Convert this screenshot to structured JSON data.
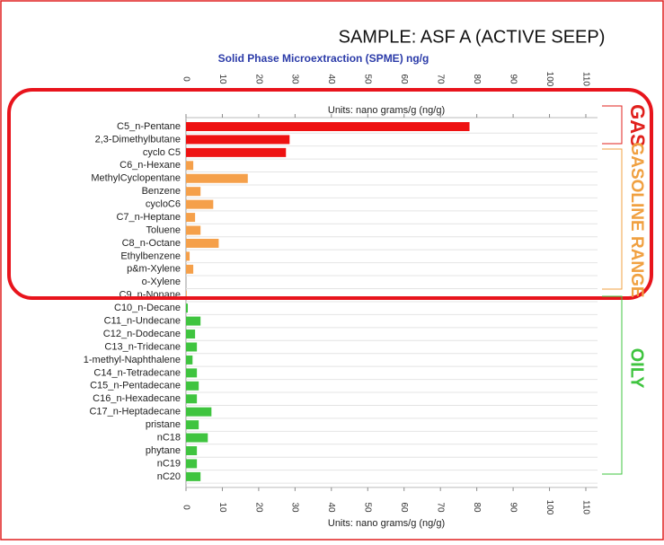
{
  "chart_data": {
    "type": "barh",
    "title": "SAMPLE: ASF A (ACTIVE SEEP)",
    "subtitle": "Solid Phase Microextraction (SPME) ng/g",
    "x_label": "Units: nano grams/g (ng/g)",
    "categories": [
      "C5_n-Pentane",
      "2,3-Dimethylbutane",
      "cyclo C5",
      "C6_n-Hexane",
      "MethylCyclopentane",
      "Benzene",
      "cycloC6",
      "C7_n-Heptane",
      "Toluene",
      "C8_n-Octane",
      "Ethylbenzene",
      "p&m-Xylene",
      "o-Xylene",
      "C9_n-Nonane",
      "C10_n-Decane",
      "C11_n-Undecane",
      "C12_n-Dodecane",
      "C13_n-Tridecane",
      "1-methyl-Naphthalene",
      "C14_n-Tetradecane",
      "C15_n-Pentadecane",
      "C16_n-Hexadecane",
      "C17_n-Heptadecane",
      "pristane",
      "nC18",
      "phytane",
      "nC19",
      "nC20"
    ],
    "values": [
      78,
      28.5,
      27.5,
      2,
      17,
      4,
      7.5,
      2.5,
      4,
      9,
      1,
      2,
      0,
      0.2,
      0.5,
      4,
      2.5,
      3,
      1.8,
      3,
      3.5,
      3,
      7,
      3.5,
      6,
      3,
      3,
      4
    ],
    "colors": [
      "#ee1111",
      "#ee1111",
      "#ee1111",
      "#f5a04a",
      "#f5a04a",
      "#f5a04a",
      "#f5a04a",
      "#f5a04a",
      "#f5a04a",
      "#f5a04a",
      "#f5a04a",
      "#f5a04a",
      "#f5a04a",
      "#f5a04a",
      "#3fc43f",
      "#3fc43f",
      "#3fc43f",
      "#3fc43f",
      "#3fc43f",
      "#3fc43f",
      "#3fc43f",
      "#3fc43f",
      "#3fc43f",
      "#3fc43f",
      "#3fc43f",
      "#3fc43f",
      "#3fc43f",
      "#3fc43f"
    ],
    "xlim": [
      0,
      110
    ],
    "xticks": [
      0,
      10,
      20,
      30,
      40,
      50,
      60,
      70,
      80,
      90,
      100,
      110
    ],
    "annotations": [
      {
        "text": "GAS",
        "color": "#e0201c"
      },
      {
        "text": "GASOLINE RANGE",
        "color": "#f0a040"
      },
      {
        "text": "OILY",
        "color": "#3fc43f"
      }
    ]
  }
}
